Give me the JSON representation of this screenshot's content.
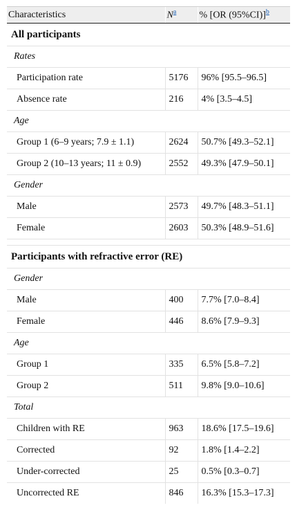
{
  "header": {
    "col1": "Characteristics",
    "col2_n": "N",
    "col2_sup": "a",
    "col3_text": "% [OR (95%CI)]",
    "col3_sup": "b"
  },
  "sections": {
    "all": {
      "title": "All participants",
      "rates": {
        "title": "Rates",
        "rows": [
          {
            "label": "Participation rate",
            "n": "5176",
            "pct": "96% [95.5–96.5]"
          },
          {
            "label": "Absence rate",
            "n": "216",
            "pct": "4% [3.5–4.5]"
          }
        ]
      },
      "age": {
        "title": "Age",
        "rows": [
          {
            "label": "Group 1 (6–9 years; 7.9 ± 1.1)",
            "n": "2624",
            "pct": "50.7% [49.3–52.1]"
          },
          {
            "label": "Group 2 (10–13 years; 11 ± 0.9)",
            "n": "2552",
            "pct": "49.3% [47.9–50.1]"
          }
        ]
      },
      "gender": {
        "title": "Gender",
        "rows": [
          {
            "label": "Male",
            "n": "2573",
            "pct": "49.7% [48.3–51.1]"
          },
          {
            "label": "Female",
            "n": "2603",
            "pct": "50.3% [48.9–51.6]"
          }
        ]
      }
    },
    "re": {
      "title": "Participants with refractive error (RE)",
      "gender": {
        "title": "Gender",
        "rows": [
          {
            "label": "Male",
            "n": "400",
            "pct": "7.7% [7.0–8.4]"
          },
          {
            "label": "Female",
            "n": "446",
            "pct": "8.6% [7.9–9.3]"
          }
        ]
      },
      "age": {
        "title": "Age",
        "rows": [
          {
            "label": "Group 1",
            "n": "335",
            "pct": "6.5% [5.8–7.2]"
          },
          {
            "label": "Group 2",
            "n": "511",
            "pct": "9.8% [9.0–10.6]"
          }
        ]
      },
      "total": {
        "title": "Total",
        "rows": [
          {
            "label": "Children with RE",
            "n": "963",
            "pct": "18.6% [17.5–19.6]"
          },
          {
            "label": "Corrected",
            "n": "92",
            "pct": "1.8% [1.4–2.2]"
          },
          {
            "label": "Under-corrected",
            "n": "25",
            "pct": "0.5% [0.3–0.7]"
          },
          {
            "label": "Uncorrected RE",
            "n": "846",
            "pct": "16.3% [15.3–17.3]"
          }
        ]
      }
    }
  }
}
